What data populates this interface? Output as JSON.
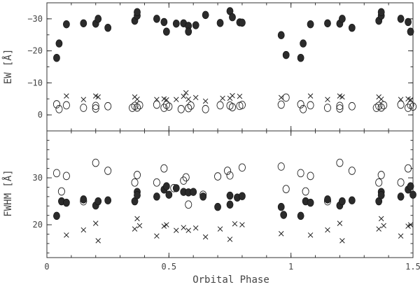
{
  "chart_data": [
    {
      "type": "scatter",
      "panel": "top",
      "ylabel": "EW [Å]",
      "xlabel": "",
      "xlim": [
        0,
        1.5
      ],
      "ylim": [
        5,
        -35
      ],
      "y_inverted": true,
      "x_ticks": [
        0,
        0.5,
        1,
        1.5
      ],
      "x_tick_labels": [
        "",
        "",
        "",
        ""
      ],
      "y_ticks": [
        0,
        -10,
        -20,
        -30
      ],
      "y_tick_labels": [
        "0",
        "−10",
        "−20",
        "−30"
      ],
      "grid": false,
      "series": [
        {
          "marker": "filled-circle",
          "points": [
            [
              0.04,
              -17.8
            ],
            [
              0.05,
              -22.3
            ],
            [
              0.08,
              -28.3
            ],
            [
              0.15,
              -28.6
            ],
            [
              0.2,
              -28.5
            ],
            [
              0.21,
              -30.0
            ],
            [
              0.25,
              -27.2
            ],
            [
              0.36,
              -29.4
            ],
            [
              0.37,
              -31.0
            ],
            [
              0.37,
              -32.1
            ],
            [
              0.45,
              -30.0
            ],
            [
              0.48,
              -29.0
            ],
            [
              0.49,
              -26.0
            ],
            [
              0.53,
              -28.5
            ],
            [
              0.56,
              -28.6
            ],
            [
              0.58,
              -27.8
            ],
            [
              0.58,
              -26.0
            ],
            [
              0.61,
              -28.0
            ],
            [
              0.65,
              -31.2
            ],
            [
              0.71,
              -28.7
            ],
            [
              0.75,
              -32.4
            ],
            [
              0.76,
              -30.5
            ],
            [
              0.79,
              -28.9
            ],
            [
              0.8,
              -28.8
            ],
            [
              0.96,
              -24.9
            ],
            [
              0.98,
              -18.7
            ],
            [
              1.04,
              -17.8
            ],
            [
              1.05,
              -22.3
            ],
            [
              1.08,
              -28.3
            ],
            [
              1.15,
              -28.6
            ],
            [
              1.2,
              -28.5
            ],
            [
              1.21,
              -30.0
            ],
            [
              1.25,
              -27.2
            ],
            [
              1.36,
              -29.4
            ],
            [
              1.37,
              -31.0
            ],
            [
              1.37,
              -32.1
            ],
            [
              1.45,
              -30.0
            ],
            [
              1.48,
              -29.0
            ],
            [
              1.49,
              -26.0
            ]
          ]
        },
        {
          "marker": "x",
          "points": [
            [
              0.08,
              -5.9
            ],
            [
              0.15,
              -4.8
            ],
            [
              0.2,
              -5.9
            ],
            [
              0.21,
              -5.6
            ],
            [
              0.36,
              -5.6
            ],
            [
              0.37,
              -4.9
            ],
            [
              0.45,
              -4.8
            ],
            [
              0.48,
              -5.0
            ],
            [
              0.49,
              -4.7
            ],
            [
              0.53,
              -4.8
            ],
            [
              0.56,
              -5.8
            ],
            [
              0.57,
              -6.9
            ],
            [
              0.58,
              -4.9
            ],
            [
              0.61,
              -5.4
            ],
            [
              0.65,
              -4.3
            ],
            [
              0.72,
              -5.2
            ],
            [
              0.75,
              -5.2
            ],
            [
              0.76,
              -6.0
            ],
            [
              0.79,
              -5.8
            ],
            [
              0.96,
              -5.4
            ],
            [
              1.08,
              -5.9
            ],
            [
              1.15,
              -4.8
            ],
            [
              1.2,
              -5.9
            ],
            [
              1.21,
              -5.6
            ],
            [
              1.36,
              -5.6
            ],
            [
              1.37,
              -4.9
            ],
            [
              1.45,
              -4.8
            ],
            [
              1.48,
              -5.0
            ],
            [
              1.49,
              -4.7
            ]
          ]
        },
        {
          "marker": "open-circle",
          "points": [
            [
              0.04,
              -3.3
            ],
            [
              0.05,
              -1.8
            ],
            [
              0.08,
              -3.0
            ],
            [
              0.15,
              -2.2
            ],
            [
              0.2,
              -2.0
            ],
            [
              0.2,
              -2.8
            ],
            [
              0.25,
              -2.7
            ],
            [
              0.35,
              -2.2
            ],
            [
              0.36,
              -2.8
            ],
            [
              0.37,
              -2.3
            ],
            [
              0.38,
              -3.0
            ],
            [
              0.45,
              -3.2
            ],
            [
              0.48,
              -2.2
            ],
            [
              0.49,
              -3.1
            ],
            [
              0.5,
              -2.6
            ],
            [
              0.55,
              -1.8
            ],
            [
              0.58,
              -2.1
            ],
            [
              0.59,
              -2.9
            ],
            [
              0.65,
              -1.8
            ],
            [
              0.71,
              -3.0
            ],
            [
              0.75,
              -2.9
            ],
            [
              0.76,
              -2.4
            ],
            [
              0.79,
              -2.8
            ],
            [
              0.8,
              -3.1
            ],
            [
              0.96,
              -3.2
            ],
            [
              0.98,
              -5.4
            ],
            [
              1.04,
              -3.3
            ],
            [
              1.05,
              -1.8
            ],
            [
              1.08,
              -3.0
            ],
            [
              1.15,
              -2.2
            ],
            [
              1.2,
              -2.0
            ],
            [
              1.2,
              -2.8
            ],
            [
              1.25,
              -2.7
            ],
            [
              1.35,
              -2.2
            ],
            [
              1.36,
              -2.8
            ],
            [
              1.37,
              -2.3
            ],
            [
              1.38,
              -3.0
            ],
            [
              1.45,
              -3.2
            ],
            [
              1.48,
              -2.2
            ],
            [
              1.49,
              -3.1
            ],
            [
              1.5,
              -2.6
            ]
          ]
        }
      ]
    },
    {
      "type": "scatter",
      "panel": "bottom",
      "ylabel": "FWHM [Å]",
      "xlabel": "Orbital Phase",
      "xlim": [
        0,
        1.5
      ],
      "ylim": [
        13,
        40
      ],
      "x_ticks": [
        0,
        0.5,
        1,
        1.5
      ],
      "x_tick_labels": [
        "0",
        "0.5",
        "1",
        "1.5"
      ],
      "y_ticks": [
        20,
        30
      ],
      "y_tick_labels": [
        "20",
        "30"
      ],
      "grid": false,
      "series": [
        {
          "marker": "open-circle",
          "points": [
            [
              0.04,
              31.0
            ],
            [
              0.06,
              27.1
            ],
            [
              0.08,
              30.4
            ],
            [
              0.15,
              25.0
            ],
            [
              0.2,
              33.2
            ],
            [
              0.25,
              31.5
            ],
            [
              0.36,
              29.0
            ],
            [
              0.37,
              30.6
            ],
            [
              0.45,
              29.0
            ],
            [
              0.48,
              32.0
            ],
            [
              0.52,
              27.8
            ],
            [
              0.56,
              29.4
            ],
            [
              0.57,
              30.1
            ],
            [
              0.58,
              24.3
            ],
            [
              0.64,
              26.4
            ],
            [
              0.7,
              30.3
            ],
            [
              0.74,
              31.5
            ],
            [
              0.75,
              30.5
            ],
            [
              0.8,
              32.2
            ],
            [
              0.96,
              32.4
            ],
            [
              0.98,
              27.6
            ],
            [
              1.04,
              31.0
            ],
            [
              1.06,
              27.1
            ],
            [
              1.08,
              30.4
            ],
            [
              1.15,
              25.0
            ],
            [
              1.2,
              33.2
            ],
            [
              1.25,
              31.5
            ],
            [
              1.36,
              29.0
            ],
            [
              1.37,
              30.6
            ],
            [
              1.45,
              29.0
            ],
            [
              1.48,
              32.0
            ]
          ]
        },
        {
          "marker": "filled-circle",
          "points": [
            [
              0.04,
              21.9
            ],
            [
              0.06,
              25.0
            ],
            [
              0.08,
              24.7
            ],
            [
              0.15,
              25.4
            ],
            [
              0.2,
              24.1
            ],
            [
              0.21,
              25.0
            ],
            [
              0.25,
              25.2
            ],
            [
              0.36,
              25.0
            ],
            [
              0.37,
              27.0
            ],
            [
              0.37,
              26.3
            ],
            [
              0.45,
              26.0
            ],
            [
              0.48,
              27.5
            ],
            [
              0.49,
              28.2
            ],
            [
              0.5,
              26.4
            ],
            [
              0.53,
              27.8
            ],
            [
              0.56,
              27.0
            ],
            [
              0.58,
              26.9
            ],
            [
              0.6,
              27.0
            ],
            [
              0.64,
              26.0
            ],
            [
              0.7,
              23.8
            ],
            [
              0.75,
              26.2
            ],
            [
              0.75,
              24.3
            ],
            [
              0.78,
              25.8
            ],
            [
              0.8,
              26.1
            ],
            [
              0.96,
              23.8
            ],
            [
              0.97,
              22.1
            ],
            [
              1.04,
              21.9
            ],
            [
              1.06,
              25.0
            ],
            [
              1.08,
              24.7
            ],
            [
              1.15,
              25.4
            ],
            [
              1.2,
              24.1
            ],
            [
              1.21,
              25.0
            ],
            [
              1.25,
              25.2
            ],
            [
              1.36,
              25.0
            ],
            [
              1.37,
              27.0
            ],
            [
              1.37,
              26.3
            ],
            [
              1.45,
              26.0
            ],
            [
              1.48,
              27.5
            ],
            [
              1.49,
              28.2
            ],
            [
              1.5,
              26.4
            ]
          ]
        },
        {
          "marker": "x",
          "points": [
            [
              0.08,
              17.8
            ],
            [
              0.15,
              18.9
            ],
            [
              0.2,
              20.3
            ],
            [
              0.21,
              16.6
            ],
            [
              0.36,
              19.1
            ],
            [
              0.37,
              21.3
            ],
            [
              0.38,
              19.8
            ],
            [
              0.45,
              17.6
            ],
            [
              0.48,
              19.7
            ],
            [
              0.49,
              20.0
            ],
            [
              0.53,
              18.8
            ],
            [
              0.56,
              19.4
            ],
            [
              0.58,
              18.8
            ],
            [
              0.61,
              19.3
            ],
            [
              0.65,
              17.4
            ],
            [
              0.71,
              19.1
            ],
            [
              0.75,
              16.9
            ],
            [
              0.77,
              20.2
            ],
            [
              0.8,
              20.0
            ],
            [
              0.96,
              18.1
            ],
            [
              1.08,
              17.8
            ],
            [
              1.15,
              18.9
            ],
            [
              1.2,
              20.3
            ],
            [
              1.21,
              16.6
            ],
            [
              1.36,
              19.1
            ],
            [
              1.37,
              21.3
            ],
            [
              1.38,
              19.8
            ],
            [
              1.45,
              17.6
            ],
            [
              1.48,
              19.7
            ],
            [
              1.49,
              20.0
            ]
          ]
        }
      ]
    }
  ]
}
